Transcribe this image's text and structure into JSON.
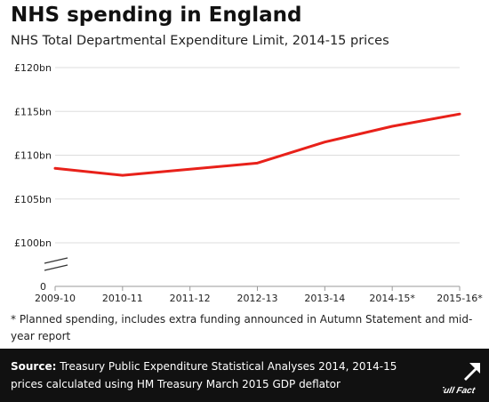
{
  "header": {
    "title": "NHS spending in England",
    "subtitle": "NHS Total Departmental Expenditure Limit, 2014-15 prices"
  },
  "chart_data": {
    "type": "line",
    "title": "NHS spending in England",
    "subtitle": "NHS Total Departmental Expenditure Limit, 2014-15 prices",
    "xlabel": "",
    "ylabel": "",
    "categories": [
      "2009-10",
      "2010-11",
      "2011-12",
      "2012-13",
      "2013-14",
      "2014-15*",
      "2015-16*"
    ],
    "series": [
      {
        "values": [
          108.5,
          107.7,
          108.4,
          109.1,
          111.5,
          113.3,
          114.7
        ],
        "color": "#e8211a"
      }
    ],
    "ylim": [
      100,
      120
    ],
    "y_ticks": [
      100,
      105,
      110,
      115,
      120
    ],
    "y_tick_labels": [
      "£100bn",
      "£105bn",
      "£110bn",
      "£115bn",
      "£120bn"
    ],
    "y_zero_label": "0",
    "axis_break": true,
    "grid": "horizontal",
    "legend": "none"
  },
  "footnote": "* Planned spending, includes extra funding announced in Autumn Statement and mid-year report",
  "source": {
    "label": "Source:",
    "text": "Treasury Public Expenditure Statistical Analyses 2014, 2014-15 prices calculated using HM Treasury March 2015 GDP deflator"
  },
  "brand": {
    "name": "Full Fact",
    "icon": "full-fact-logo-icon"
  },
  "colors": {
    "line": "#e8211a",
    "grid": "#dddddd",
    "axis": "#999999",
    "footer_bg": "#111111"
  }
}
